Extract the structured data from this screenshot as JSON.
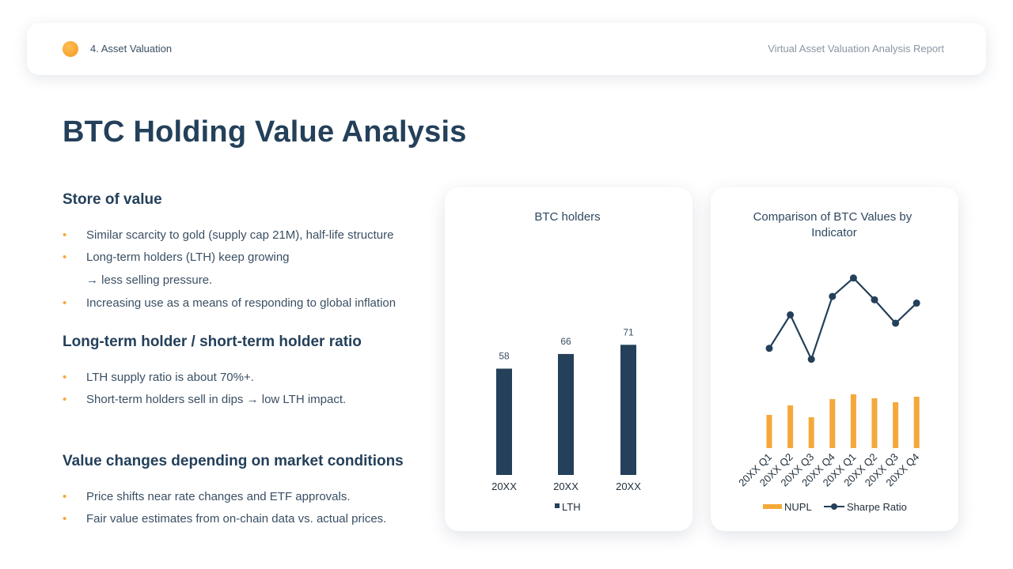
{
  "header": {
    "section": "4. Asset Valuation",
    "report": "Virtual Asset Valuation Analysis Report",
    "accent_color": "#f5a83a"
  },
  "title": "BTC Holding Value Analysis",
  "sections": [
    {
      "heading": "Store of value",
      "bullets": [
        "Similar scarcity to gold (supply cap 21M), half-life structure",
        "Long-term holders (LTH) keep growing",
        "Increasing use as a means of responding to global inflation"
      ],
      "continuation": "→ less selling pressure."
    },
    {
      "heading": "Long-term holder / short-term holder ratio",
      "bullets": [
        "LTH supply ratio is about 70%+.",
        "Short-term holders sell in dips → low LTH impact."
      ]
    },
    {
      "heading": "Value changes depending on market conditions",
      "bullets": [
        "Price shifts near rate changes and ETF approvals.",
        "Fair value estimates from on-chain data vs. actual prices."
      ]
    }
  ],
  "bullet_mark": "•",
  "chart_data": [
    {
      "type": "bar",
      "title": "BTC holders",
      "categories": [
        "20XX",
        "20XX",
        "20XX"
      ],
      "series": [
        {
          "name": "LTH",
          "values": [
            58,
            66,
            71
          ],
          "color": "#24405a"
        }
      ],
      "ylim": [
        0,
        72
      ],
      "legend": "bottom",
      "grid": false,
      "data_labels": true
    },
    {
      "type": "bar",
      "title": "Comparison of BTC Values by Indicator",
      "categories": [
        "20XX Q1",
        "20XX Q2",
        "20XX Q3",
        "20XX Q4",
        "20XX Q1",
        "20XX Q2",
        "20XX Q3",
        "20XX Q4"
      ],
      "series": [
        {
          "name": "NUPL",
          "type": "bar",
          "values": [
            0.42,
            0.54,
            0.39,
            0.62,
            0.68,
            0.63,
            0.58,
            0.65
          ],
          "color": "#f5a83a"
        },
        {
          "name": "Sharpe Ratio",
          "type": "line",
          "values": [
            1.2,
            1.6,
            1.07,
            1.82,
            2.04,
            1.78,
            1.5,
            1.74
          ],
          "color": "#24405a"
        }
      ],
      "legend": "bottom",
      "grid": false
    }
  ]
}
